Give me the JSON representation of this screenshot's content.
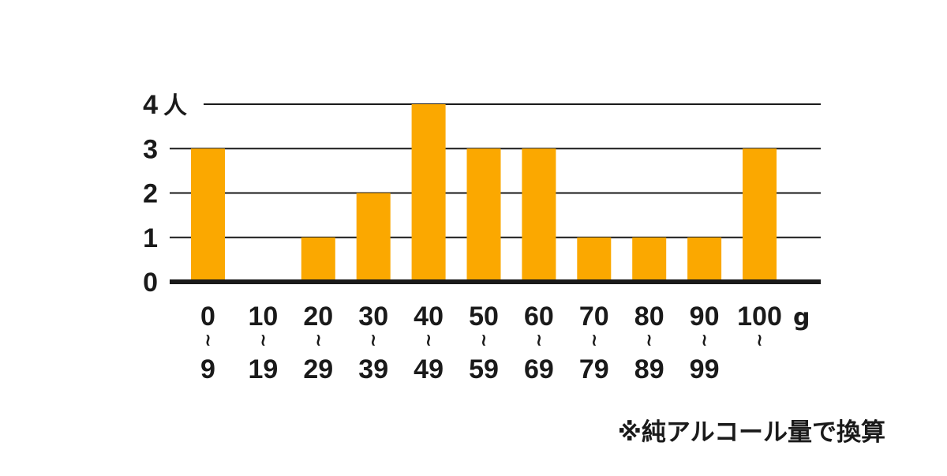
{
  "chart_data": {
    "type": "bar",
    "categories": [
      {
        "top": "0",
        "sep": "~",
        "bottom": "9"
      },
      {
        "top": "10",
        "sep": "~",
        "bottom": "19"
      },
      {
        "top": "20",
        "sep": "~",
        "bottom": "29"
      },
      {
        "top": "30",
        "sep": "~",
        "bottom": "39"
      },
      {
        "top": "40",
        "sep": "~",
        "bottom": "49"
      },
      {
        "top": "50",
        "sep": "~",
        "bottom": "59"
      },
      {
        "top": "60",
        "sep": "~",
        "bottom": "69"
      },
      {
        "top": "70",
        "sep": "~",
        "bottom": "79"
      },
      {
        "top": "80",
        "sep": "~",
        "bottom": "89"
      },
      {
        "top": "90",
        "sep": "~",
        "bottom": "99"
      },
      {
        "top": "100",
        "sep": "~",
        "bottom": ""
      }
    ],
    "values": [
      3,
      0,
      1,
      2,
      4,
      3,
      3,
      1,
      1,
      1,
      3
    ],
    "ylim": [
      0,
      4
    ],
    "yticks": [
      "0",
      "1",
      "2",
      "3",
      "4"
    ],
    "y_unit": "人",
    "x_unit": "g",
    "grid": true,
    "bar_color": "#FBA800",
    "grid_color": "#1a1a1a"
  },
  "footnote": "※純アルコール量で換算"
}
